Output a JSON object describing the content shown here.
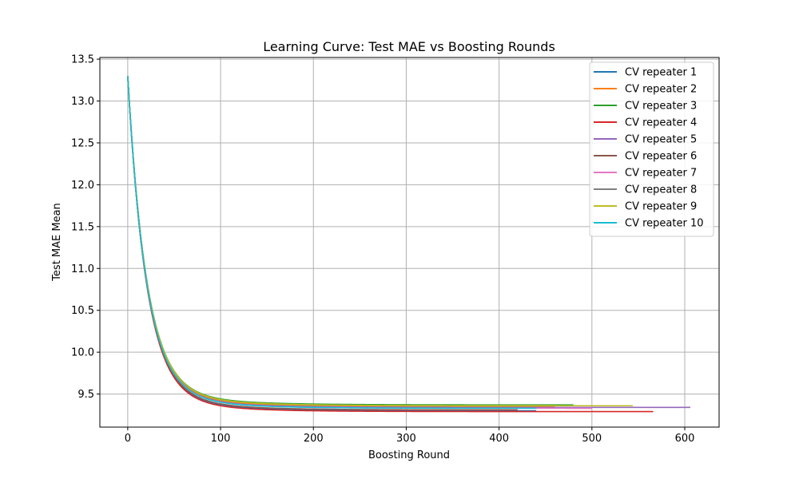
{
  "chart_data": {
    "type": "line",
    "title": "Learning Curve: Test MAE vs Boosting Rounds",
    "xlabel": "Boosting Round",
    "ylabel": "Test MAE Mean",
    "xlim": [
      -30,
      637
    ],
    "ylim": [
      9.105,
      13.52
    ],
    "xticks": [
      0,
      100,
      200,
      300,
      400,
      500,
      600
    ],
    "yticks": [
      9.5,
      10.0,
      10.5,
      11.0,
      11.5,
      12.0,
      12.5,
      13.0,
      13.5
    ],
    "xtick_labels": [
      "0",
      "100",
      "200",
      "300",
      "400",
      "500",
      "600"
    ],
    "ytick_labels": [
      "9.5",
      "10.0",
      "10.5",
      "11.0",
      "11.5",
      "12.0",
      "12.5",
      "13.0",
      "13.5"
    ],
    "grid": true,
    "legend_position": "top-right",
    "curve_model": {
      "start_value": 13.3,
      "fast_decay_rate": 0.05,
      "slow_decay_rate": 0.015
    },
    "series": [
      {
        "name": "CV repeater 1",
        "color": "#1f77b4",
        "end_round": 440,
        "floor": 9.3,
        "slow_amp": 0.22
      },
      {
        "name": "CV repeater 2",
        "color": "#ff7f0e",
        "end_round": 460,
        "floor": 9.35,
        "slow_amp": 0.2
      },
      {
        "name": "CV repeater 3",
        "color": "#2ca02c",
        "end_round": 480,
        "floor": 9.37,
        "slow_amp": 0.21
      },
      {
        "name": "CV repeater 4",
        "color": "#d62728",
        "end_round": 567,
        "floor": 9.29,
        "slow_amp": 0.2
      },
      {
        "name": "CV repeater 5",
        "color": "#9467bd",
        "end_round": 607,
        "floor": 9.34,
        "slow_amp": 0.2
      },
      {
        "name": "CV repeater 6",
        "color": "#8c564b",
        "end_round": 420,
        "floor": 9.31,
        "slow_amp": 0.21
      },
      {
        "name": "CV repeater 7",
        "color": "#e377c2",
        "end_round": 500,
        "floor": 9.33,
        "slow_amp": 0.22
      },
      {
        "name": "CV repeater 8",
        "color": "#7f7f7f",
        "end_round": 460,
        "floor": 9.36,
        "slow_amp": 0.21
      },
      {
        "name": "CV repeater 9",
        "color": "#bcbd22",
        "end_round": 545,
        "floor": 9.36,
        "slow_amp": 0.22
      },
      {
        "name": "CV repeater 10",
        "color": "#17becf",
        "end_round": 440,
        "floor": 9.33,
        "slow_amp": 0.21
      }
    ]
  }
}
